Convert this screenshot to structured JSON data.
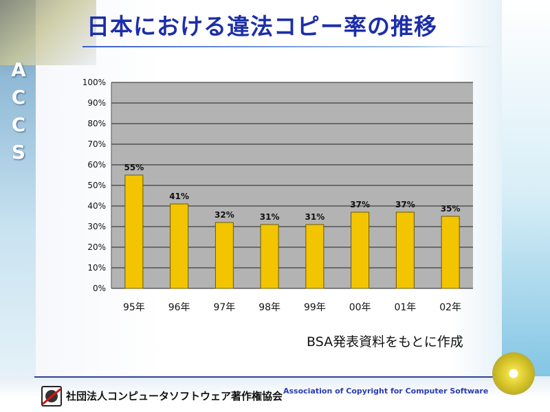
{
  "title": "日本における違法コピー率の推移",
  "side_logo": [
    "A",
    "C",
    "C",
    "S"
  ],
  "chart_data": {
    "type": "bar",
    "categories": [
      "95年",
      "96年",
      "97年",
      "98年",
      "99年",
      "00年",
      "01年",
      "02年"
    ],
    "values": [
      55,
      41,
      32,
      31,
      31,
      37,
      37,
      35
    ],
    "data_labels": [
      "55%",
      "41%",
      "32%",
      "31%",
      "31%",
      "37%",
      "37%",
      "35%"
    ],
    "yticks": [
      "0%",
      "10%",
      "20%",
      "30%",
      "40%",
      "50%",
      "60%",
      "70%",
      "80%",
      "90%",
      "100%"
    ],
    "ylim": [
      0,
      100
    ],
    "grid": true,
    "bar_color": "#f2c500",
    "plot_bg": "#b3b3b3"
  },
  "source_note": "BSA発表資料をもとに作成",
  "footer": {
    "org_name": "社団法人コンピュータソフトウェア著作権協会",
    "org_name_en": "Association of Copyright for Computer Software"
  }
}
